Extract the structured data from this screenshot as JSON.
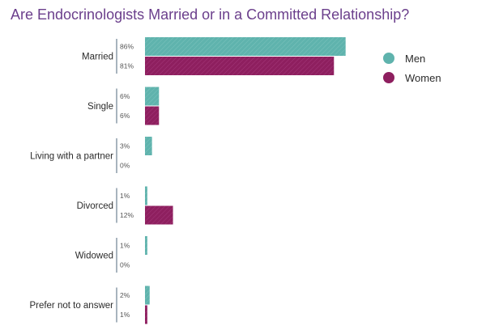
{
  "chart_data": {
    "type": "bar",
    "orientation": "horizontal",
    "title": "Are Endocrinologists Married or in a Committed Relationship?",
    "categories": [
      "Married",
      "Single",
      "Living with a partner",
      "Divorced",
      "Widowed",
      "Prefer not to answer"
    ],
    "series": [
      {
        "name": "Men",
        "color": "#5fb3ad",
        "values": [
          86,
          6,
          3,
          1,
          1,
          2
        ],
        "labels": [
          "86%",
          "6%",
          "3%",
          "1%",
          "1%",
          "2%"
        ]
      },
      {
        "name": "Women",
        "color": "#8e1f5f",
        "values": [
          81,
          6,
          0,
          12,
          0,
          1
        ],
        "labels": [
          "81%",
          "6%",
          "0%",
          "12%",
          "0%",
          "1%"
        ]
      }
    ],
    "xlim": [
      0,
      100
    ],
    "grid": false,
    "legend_position": "top-right"
  }
}
